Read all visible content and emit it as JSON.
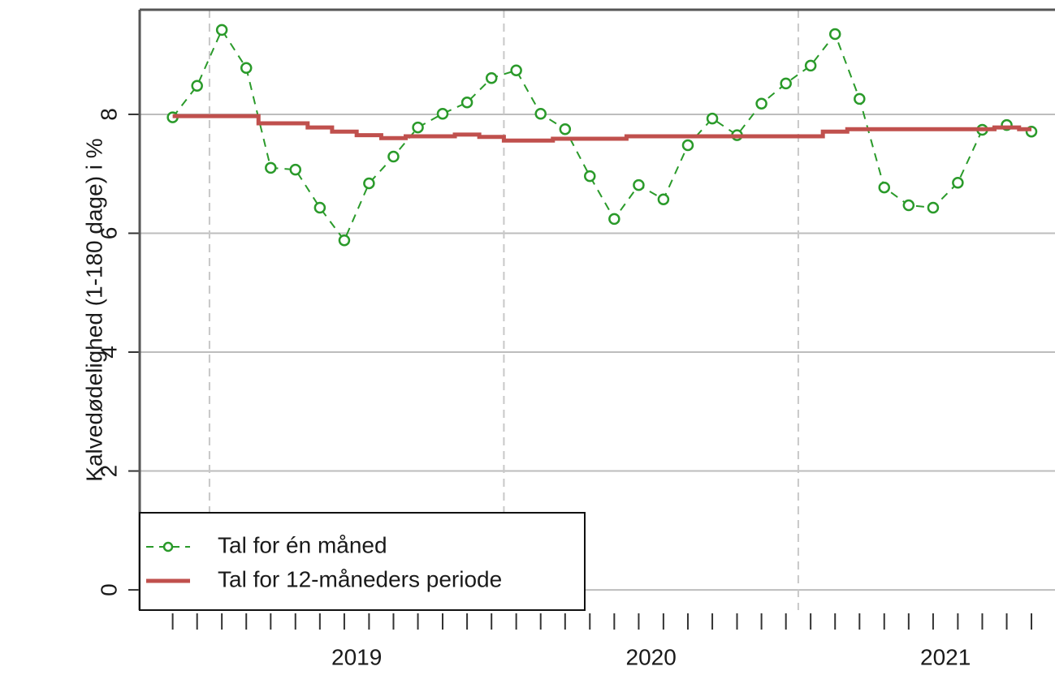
{
  "chart_data": {
    "type": "line",
    "y_label": "Kalvedødelighed (1-180 dage) i %",
    "x": [
      2018.875,
      2018.958,
      2019.042,
      2019.125,
      2019.208,
      2019.292,
      2019.375,
      2019.458,
      2019.542,
      2019.625,
      2019.708,
      2019.792,
      2019.875,
      2019.958,
      2020.042,
      2020.125,
      2020.208,
      2020.292,
      2020.375,
      2020.458,
      2020.542,
      2020.625,
      2020.708,
      2020.792,
      2020.875,
      2020.958,
      2021.042,
      2021.125,
      2021.208,
      2021.292,
      2021.375,
      2021.458,
      2021.542,
      2021.625,
      2021.708,
      2021.792
    ],
    "series": [
      {
        "name": "Tal for én måned",
        "color": "#2a9a2a",
        "style": "dashed-points",
        "values": [
          7.95,
          8.48,
          9.42,
          8.78,
          7.1,
          7.07,
          6.43,
          5.88,
          6.84,
          7.29,
          7.78,
          8.01,
          8.2,
          8.61,
          8.74,
          8.01,
          7.75,
          6.96,
          6.24,
          6.81,
          6.57,
          7.48,
          7.93,
          7.65,
          8.18,
          8.52,
          8.82,
          9.35,
          8.26,
          6.77,
          6.47,
          6.43,
          6.85,
          7.74,
          7.82,
          7.71
        ]
      },
      {
        "name": "Tal for 12-måneders periode",
        "color": "#c0504d",
        "style": "step",
        "values": [
          7.97,
          7.97,
          7.97,
          7.97,
          7.85,
          7.85,
          7.78,
          7.71,
          7.65,
          7.6,
          7.63,
          7.63,
          7.66,
          7.62,
          7.56,
          7.56,
          7.59,
          7.59,
          7.59,
          7.63,
          7.63,
          7.63,
          7.63,
          7.63,
          7.63,
          7.63,
          7.63,
          7.71,
          7.75,
          7.75,
          7.75,
          7.75,
          7.75,
          7.75,
          7.78,
          7.75
        ]
      }
    ],
    "xlim": [
      2018.763,
      2021.872
    ],
    "xticks": [
      {
        "value": 2019.5,
        "label": "2019"
      },
      {
        "value": 2020.5,
        "label": "2020"
      },
      {
        "value": 2021.5,
        "label": "2021"
      }
    ],
    "vlines": [
      2019,
      2020,
      2021
    ],
    "ylim": [
      -0.34,
      9.76
    ],
    "yticks": [
      0,
      2,
      4,
      6,
      8
    ],
    "grid": true,
    "legend": "bottom-left"
  }
}
